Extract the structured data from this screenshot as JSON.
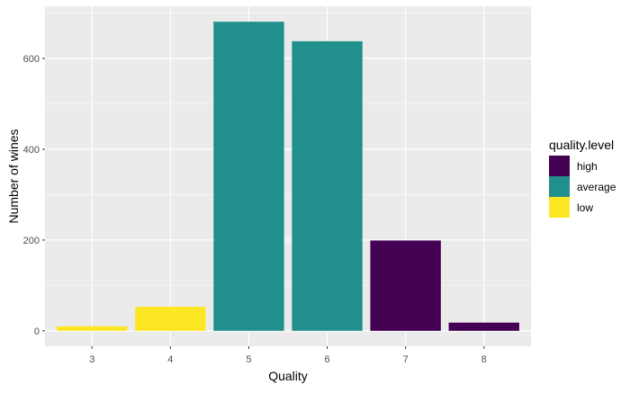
{
  "chart_data": {
    "type": "bar",
    "categories": [
      "3",
      "4",
      "5",
      "6",
      "7",
      "8"
    ],
    "values": [
      10,
      53,
      681,
      638,
      199,
      18
    ],
    "bar_groups": [
      "low",
      "low",
      "average",
      "average",
      "high",
      "high"
    ],
    "xlabel": "Quality",
    "ylabel": "Number of wines",
    "ylim": [
      -34,
      715
    ],
    "yticks": [
      0,
      200,
      400,
      600
    ],
    "ytick_labels": [
      "0",
      "200",
      "400",
      "600"
    ],
    "grid": true,
    "legend": {
      "title": "quality.level",
      "placement": "right",
      "entries": [
        {
          "key": "high",
          "label": "high",
          "color": "#440154"
        },
        {
          "key": "average",
          "label": "average",
          "color": "#21908C"
        },
        {
          "key": "low",
          "label": "low",
          "color": "#FDE725"
        }
      ]
    },
    "panel_background": "#EBEBEB",
    "grid_color": "#FFFFFF",
    "text_color": "#4D4D4D"
  }
}
